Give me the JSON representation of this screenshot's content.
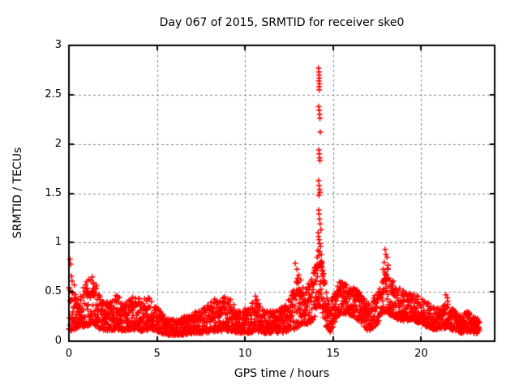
{
  "page": {
    "background": "#ffffff",
    "text_color": "#000000"
  },
  "chart_data": {
    "type": "scatter",
    "title": "Day 067 of 2015, SRMTID for receiver ske0",
    "xlabel": "GPS time / hours",
    "ylabel": "SRMTID / TECUs",
    "xlim": [
      0,
      24.17
    ],
    "ylim": [
      0,
      3
    ],
    "xticks": [
      0,
      5,
      10,
      15,
      20
    ],
    "xtick_labels": [
      "0",
      "5",
      "10",
      "15",
      "20"
    ],
    "yticks": [
      0,
      0.5,
      1,
      1.5,
      2,
      2.5,
      3
    ],
    "ytick_labels": [
      "0",
      "0.5",
      "1",
      "1.5",
      "2",
      "2.5",
      "3"
    ],
    "grid": true,
    "grid_style": "dashed",
    "grid_color": "#808080",
    "border_color": "#000000",
    "legend": "none",
    "marker": {
      "shape": "plus",
      "color": "#ff0000",
      "size": 7
    },
    "series_name": "SRMTID",
    "data_hour_range": [
      0,
      23.3
    ],
    "samples": 2400,
    "band_envelope": [
      [
        0.0,
        0.1,
        0.55
      ],
      [
        0.5,
        0.12,
        0.45
      ],
      [
        1.0,
        0.15,
        0.6
      ],
      [
        1.4,
        0.15,
        0.7
      ],
      [
        1.8,
        0.12,
        0.45
      ],
      [
        2.3,
        0.1,
        0.38
      ],
      [
        2.7,
        0.12,
        0.5
      ],
      [
        3.1,
        0.1,
        0.36
      ],
      [
        3.6,
        0.12,
        0.48
      ],
      [
        4.1,
        0.1,
        0.42
      ],
      [
        4.7,
        0.12,
        0.46
      ],
      [
        5.2,
        0.08,
        0.3
      ],
      [
        5.7,
        0.06,
        0.22
      ],
      [
        6.2,
        0.06,
        0.22
      ],
      [
        6.7,
        0.07,
        0.26
      ],
      [
        7.2,
        0.08,
        0.3
      ],
      [
        7.7,
        0.08,
        0.34
      ],
      [
        8.2,
        0.1,
        0.42
      ],
      [
        8.7,
        0.1,
        0.46
      ],
      [
        9.2,
        0.1,
        0.44
      ],
      [
        9.7,
        0.08,
        0.32
      ],
      [
        10.2,
        0.08,
        0.34
      ],
      [
        10.6,
        0.1,
        0.46
      ],
      [
        11.0,
        0.08,
        0.34
      ],
      [
        11.5,
        0.08,
        0.3
      ],
      [
        12.0,
        0.08,
        0.34
      ],
      [
        12.4,
        0.1,
        0.4
      ],
      [
        12.8,
        0.12,
        0.55
      ],
      [
        13.1,
        0.15,
        0.7
      ],
      [
        13.4,
        0.15,
        0.55
      ],
      [
        13.7,
        0.18,
        0.6
      ],
      [
        14.0,
        0.25,
        0.8
      ],
      [
        14.15,
        0.35,
        1.05
      ],
      [
        14.3,
        0.35,
        0.95
      ],
      [
        14.45,
        0.25,
        0.7
      ],
      [
        14.6,
        0.15,
        0.5
      ],
      [
        14.85,
        0.08,
        0.4
      ],
      [
        15.1,
        0.2,
        0.5
      ],
      [
        15.4,
        0.28,
        0.62
      ],
      [
        15.8,
        0.28,
        0.6
      ],
      [
        16.2,
        0.25,
        0.55
      ],
      [
        16.6,
        0.18,
        0.48
      ],
      [
        17.0,
        0.1,
        0.38
      ],
      [
        17.4,
        0.15,
        0.5
      ],
      [
        17.8,
        0.25,
        0.65
      ],
      [
        18.05,
        0.3,
        0.8
      ],
      [
        18.3,
        0.25,
        0.65
      ],
      [
        18.7,
        0.22,
        0.55
      ],
      [
        19.1,
        0.2,
        0.5
      ],
      [
        19.5,
        0.22,
        0.52
      ],
      [
        19.9,
        0.18,
        0.45
      ],
      [
        20.3,
        0.15,
        0.4
      ],
      [
        20.7,
        0.12,
        0.35
      ],
      [
        21.1,
        0.12,
        0.33
      ],
      [
        21.5,
        0.14,
        0.42
      ],
      [
        21.9,
        0.1,
        0.3
      ],
      [
        22.3,
        0.08,
        0.28
      ],
      [
        22.7,
        0.1,
        0.3
      ],
      [
        23.0,
        0.08,
        0.25
      ],
      [
        23.3,
        0.08,
        0.22
      ]
    ],
    "spike_points": [
      [
        14.17,
        2.77
      ],
      [
        14.19,
        2.73
      ],
      [
        14.2,
        2.7
      ],
      [
        14.21,
        2.67
      ],
      [
        14.19,
        2.64
      ],
      [
        14.22,
        2.61
      ],
      [
        14.2,
        2.58
      ],
      [
        14.21,
        2.55
      ],
      [
        14.18,
        2.38
      ],
      [
        14.21,
        2.34
      ],
      [
        14.23,
        2.3
      ],
      [
        14.25,
        2.26
      ],
      [
        14.27,
        2.12
      ],
      [
        14.19,
        1.94
      ],
      [
        14.21,
        1.9
      ],
      [
        14.23,
        1.86
      ],
      [
        14.25,
        1.83
      ],
      [
        14.17,
        1.63
      ],
      [
        14.2,
        1.58
      ],
      [
        14.23,
        1.54
      ],
      [
        14.25,
        1.51
      ],
      [
        14.19,
        1.48
      ],
      [
        14.18,
        1.33
      ],
      [
        14.2,
        1.29
      ],
      [
        14.22,
        1.24
      ],
      [
        14.26,
        1.19
      ],
      [
        14.31,
        1.13
      ],
      [
        14.17,
        1.06
      ],
      [
        14.2,
        1.03
      ],
      [
        14.24,
        0.99
      ],
      [
        14.28,
        0.96
      ],
      [
        14.15,
        1.1
      ],
      [
        14.13,
        0.92
      ],
      [
        14.1,
        0.85
      ],
      [
        14.08,
        0.78
      ],
      [
        14.05,
        0.72
      ],
      [
        14.33,
        0.88
      ],
      [
        14.36,
        0.8
      ],
      [
        14.39,
        0.72
      ],
      [
        14.42,
        0.66
      ],
      [
        14.45,
        0.6
      ]
    ],
    "outlier_points": [
      [
        0.06,
        0.83
      ],
      [
        0.1,
        0.78
      ],
      [
        0.14,
        0.66
      ],
      [
        0.18,
        0.61
      ],
      [
        0.3,
        0.57
      ],
      [
        12.85,
        0.79
      ],
      [
        12.95,
        0.73
      ],
      [
        13.05,
        0.67
      ],
      [
        13.15,
        0.62
      ],
      [
        17.95,
        0.93
      ],
      [
        18.0,
        0.88
      ],
      [
        18.06,
        0.85
      ],
      [
        17.9,
        0.8
      ],
      [
        18.12,
        0.77
      ],
      [
        17.84,
        0.73
      ],
      [
        21.4,
        0.47
      ],
      [
        21.48,
        0.44
      ]
    ]
  }
}
